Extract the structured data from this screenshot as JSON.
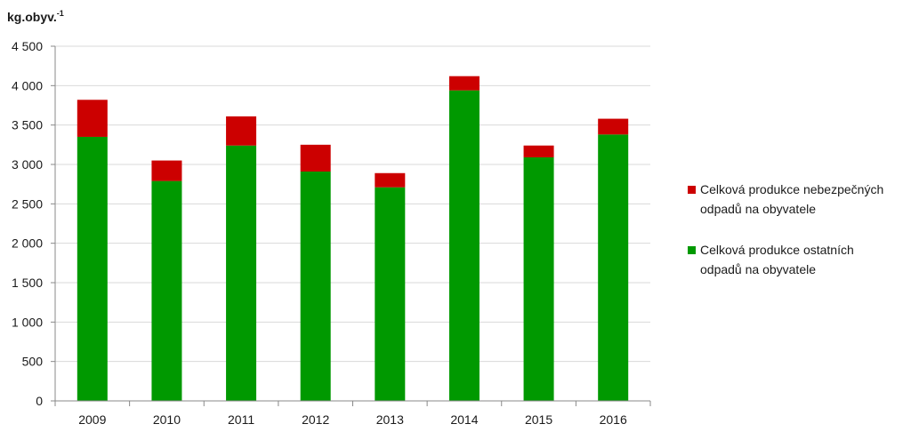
{
  "chart_data": {
    "type": "bar",
    "stacked": true,
    "ylabel": "kg.obyv.",
    "ylabel_superscript": "-1",
    "categories": [
      "2009",
      "2010",
      "2011",
      "2012",
      "2013",
      "2014",
      "2015",
      "2016"
    ],
    "series": [
      {
        "name": "Celková produkce ostatních odpadů na obyvatele",
        "name_lines": [
          "Celková produkce ostatních",
          "odpadů na obyvatele"
        ],
        "color": "#009900",
        "values": [
          3350,
          2790,
          3240,
          2910,
          2710,
          3940,
          3090,
          3380
        ]
      },
      {
        "name": "Celková produkce nebezpečných odpadů na obyvatele",
        "name_lines": [
          "Celková produkce nebezpečných",
          "odpadů na obyvatele"
        ],
        "color": "#cc0000",
        "values": [
          470,
          260,
          370,
          340,
          180,
          180,
          150,
          200
        ]
      }
    ],
    "ylim": [
      0,
      4500
    ],
    "yticks": [
      0,
      500,
      1000,
      1500,
      2000,
      2500,
      3000,
      3500,
      4000,
      4500
    ],
    "ytick_labels": [
      "0",
      "500",
      "1 000",
      "1 500",
      "2 000",
      "2 500",
      "3 000",
      "3 500",
      "4 000",
      "4 500"
    ],
    "grid": true,
    "legend_position": "right",
    "legend_order": [
      1,
      0
    ]
  }
}
